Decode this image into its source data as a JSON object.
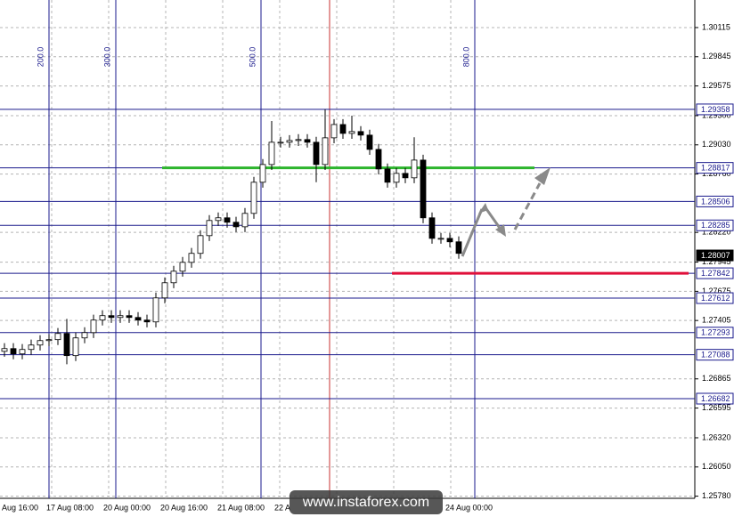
{
  "chart_data": {
    "type": "candlestick",
    "ylim": [
      1.2576,
      1.3037
    ],
    "yticks": [
      1.30115,
      1.29845,
      1.29575,
      {
        "value": 1.293,
        "label": "1.29300"
      },
      {
        "value": 1.2903,
        "label": "1.29030"
      },
      {
        "value": 1.2876,
        "label": "1.28760"
      },
      {
        "value": 1.2822,
        "label": "1.28220"
      },
      1.27945,
      1.27675,
      1.27405,
      1.26865,
      1.26595,
      {
        "value": 1.2632,
        "label": "1.26320"
      },
      {
        "value": 1.2605,
        "label": "1.26050"
      },
      {
        "value": 1.2578,
        "label": "1.25780"
      }
    ],
    "grid": true,
    "x_labels": [
      "Aug 16:00",
      "17 Aug 08:00",
      "20 Aug 00:00",
      "20 Aug 16:00",
      "21 Aug 08:00",
      "22 A",
      null,
      null,
      "24 Aug 00:00"
    ],
    "vlines": [
      {
        "label": "200.0",
        "color": "#1a1a8c"
      },
      {
        "label": "300.0",
        "color": "#1a1a8c"
      },
      {
        "label": "500.0",
        "color": "#1a1a8c"
      },
      {
        "label": "800.0",
        "color": "#1a1a8c"
      }
    ],
    "levels": [
      {
        "value": 1.29358,
        "label": "1.29358"
      },
      {
        "value": 1.28817,
        "label": "1.28817"
      },
      {
        "value": 1.28506,
        "label": "1.28506"
      },
      {
        "value": 1.28285,
        "label": "1.28285"
      },
      {
        "value": 1.27842,
        "label": "1.27842"
      },
      {
        "value": 1.27612,
        "label": "1.27612"
      },
      {
        "value": 1.27293,
        "label": "1.27293"
      },
      {
        "value": 1.27088,
        "label": "1.27088"
      },
      {
        "value": 1.26682,
        "label": "1.26682"
      }
    ],
    "level_color": "#1a1a8c",
    "current_price": {
      "value": 1.28007,
      "label": "1.28007"
    },
    "lines": [
      {
        "value": 1.28817,
        "color": "#2db52d"
      },
      {
        "value": 1.27842,
        "color": "#e0103a"
      }
    ],
    "open": [
      1.2712,
      1.27145,
      1.27096,
      1.27137,
      1.27178,
      1.27219,
      1.27228,
      1.27285,
      1.2708,
      1.27244,
      1.27293,
      1.27409,
      1.2745,
      1.27433,
      1.2745,
      1.27433,
      1.27409,
      1.27392,
      1.27614,
      1.27754,
      1.27861,
      1.27943,
      1.28026,
      1.2819,
      1.2833,
      1.28355,
      1.28314,
      1.28272,
      1.28396,
      1.28684,
      1.28848,
      1.29054,
      1.29054,
      1.2907,
      1.29079,
      1.29054,
      1.28848,
      1.29095,
      1.29218,
      1.29136,
      1.29153,
      1.2912,
      1.28988,
      1.28807,
      1.28684,
      1.28766,
      1.28725,
      1.28889,
      1.28355,
      1.28165,
      1.28165,
      1.28133
    ],
    "high": [
      1.27195,
      1.27195,
      1.27187,
      1.27228,
      1.27269,
      1.27278,
      1.27335,
      1.2742,
      1.27294,
      1.27343,
      1.27459,
      1.275,
      1.275,
      1.275,
      1.275,
      1.27483,
      1.27459,
      1.27664,
      1.27804,
      1.27911,
      1.27993,
      1.28076,
      1.2824,
      1.2838,
      1.28405,
      1.28405,
      1.28364,
      1.28446,
      1.28734,
      1.28898,
      1.2925,
      1.29104,
      1.2912,
      1.29129,
      1.29129,
      1.29104,
      1.29358,
      1.29268,
      1.29268,
      1.293,
      1.29203,
      1.2917,
      1.29038,
      1.28857,
      1.28816,
      1.28816,
      1.291,
      1.28939,
      1.28405,
      1.28215,
      1.28215,
      1.28183
    ],
    "low": [
      1.2707,
      1.27046,
      1.27046,
      1.27087,
      1.27128,
      1.27169,
      1.27178,
      1.27,
      1.2703,
      1.27194,
      1.27243,
      1.27359,
      1.27383,
      1.27383,
      1.27383,
      1.27359,
      1.27342,
      1.27342,
      1.27564,
      1.27704,
      1.27811,
      1.27893,
      1.27976,
      1.2814,
      1.2828,
      1.28264,
      1.28222,
      1.28222,
      1.28346,
      1.28634,
      1.28798,
      1.29004,
      1.29004,
      1.2902,
      1.29004,
      1.28684,
      1.28798,
      1.29045,
      1.29086,
      1.29086,
      1.2907,
      1.28938,
      1.28757,
      1.28634,
      1.28634,
      1.28675,
      1.28675,
      1.28305,
      1.28115,
      1.28115,
      1.28083,
      1.27976
    ],
    "close": [
      1.27145,
      1.27096,
      1.27137,
      1.27178,
      1.27219,
      1.27228,
      1.27285,
      1.2708,
      1.27244,
      1.27293,
      1.27409,
      1.2745,
      1.27433,
      1.2745,
      1.27433,
      1.27409,
      1.27392,
      1.27614,
      1.27754,
      1.27861,
      1.27943,
      1.28026,
      1.2819,
      1.2833,
      1.28355,
      1.28314,
      1.28272,
      1.28396,
      1.28684,
      1.28848,
      1.29054,
      1.29054,
      1.2907,
      1.29079,
      1.29054,
      1.28848,
      1.29095,
      1.29218,
      1.29136,
      1.29153,
      1.2912,
      1.28988,
      1.28807,
      1.28684,
      1.28766,
      1.28725,
      1.28889,
      1.28355,
      1.28165,
      1.28165,
      1.28133,
      1.28026
    ],
    "watermark": "www.instaforex.com"
  }
}
